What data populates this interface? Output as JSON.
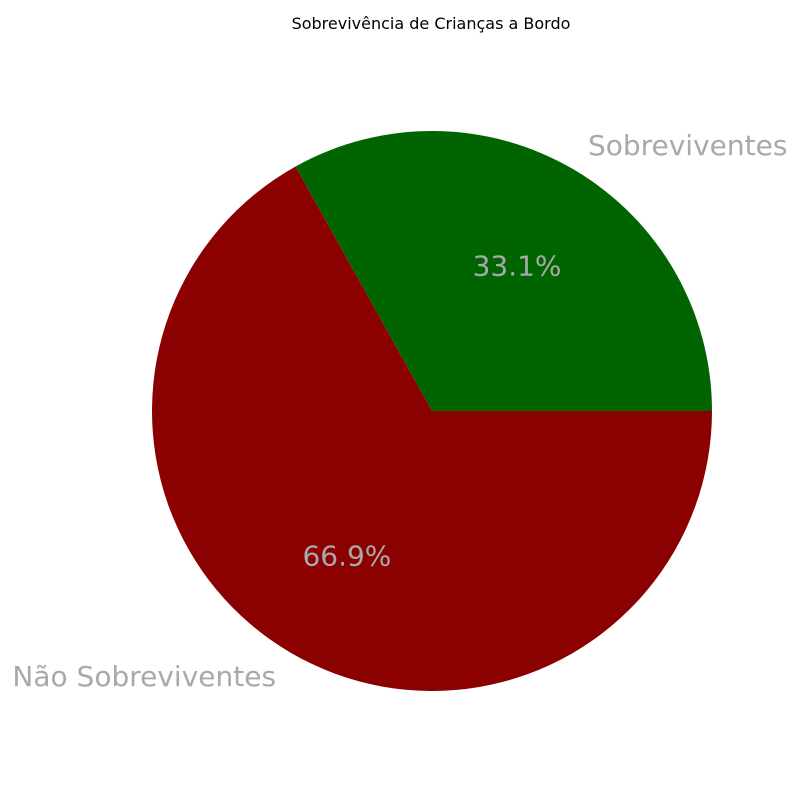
{
  "chart_data": {
    "type": "pie",
    "title": "Sobrevivência de Crianças a Bordo",
    "start_angle_deg": 0,
    "direction": "counterclockwise",
    "slices": [
      {
        "label": "Sobreviventes",
        "value": 33.1,
        "pct_label": "33.1%",
        "color": "#006400"
      },
      {
        "label": "Não Sobreviventes",
        "value": 66.9,
        "pct_label": "66.9%",
        "color": "#8b0000"
      }
    ],
    "label_color": "#a9a9a9",
    "legend": "none",
    "grid": false
  }
}
